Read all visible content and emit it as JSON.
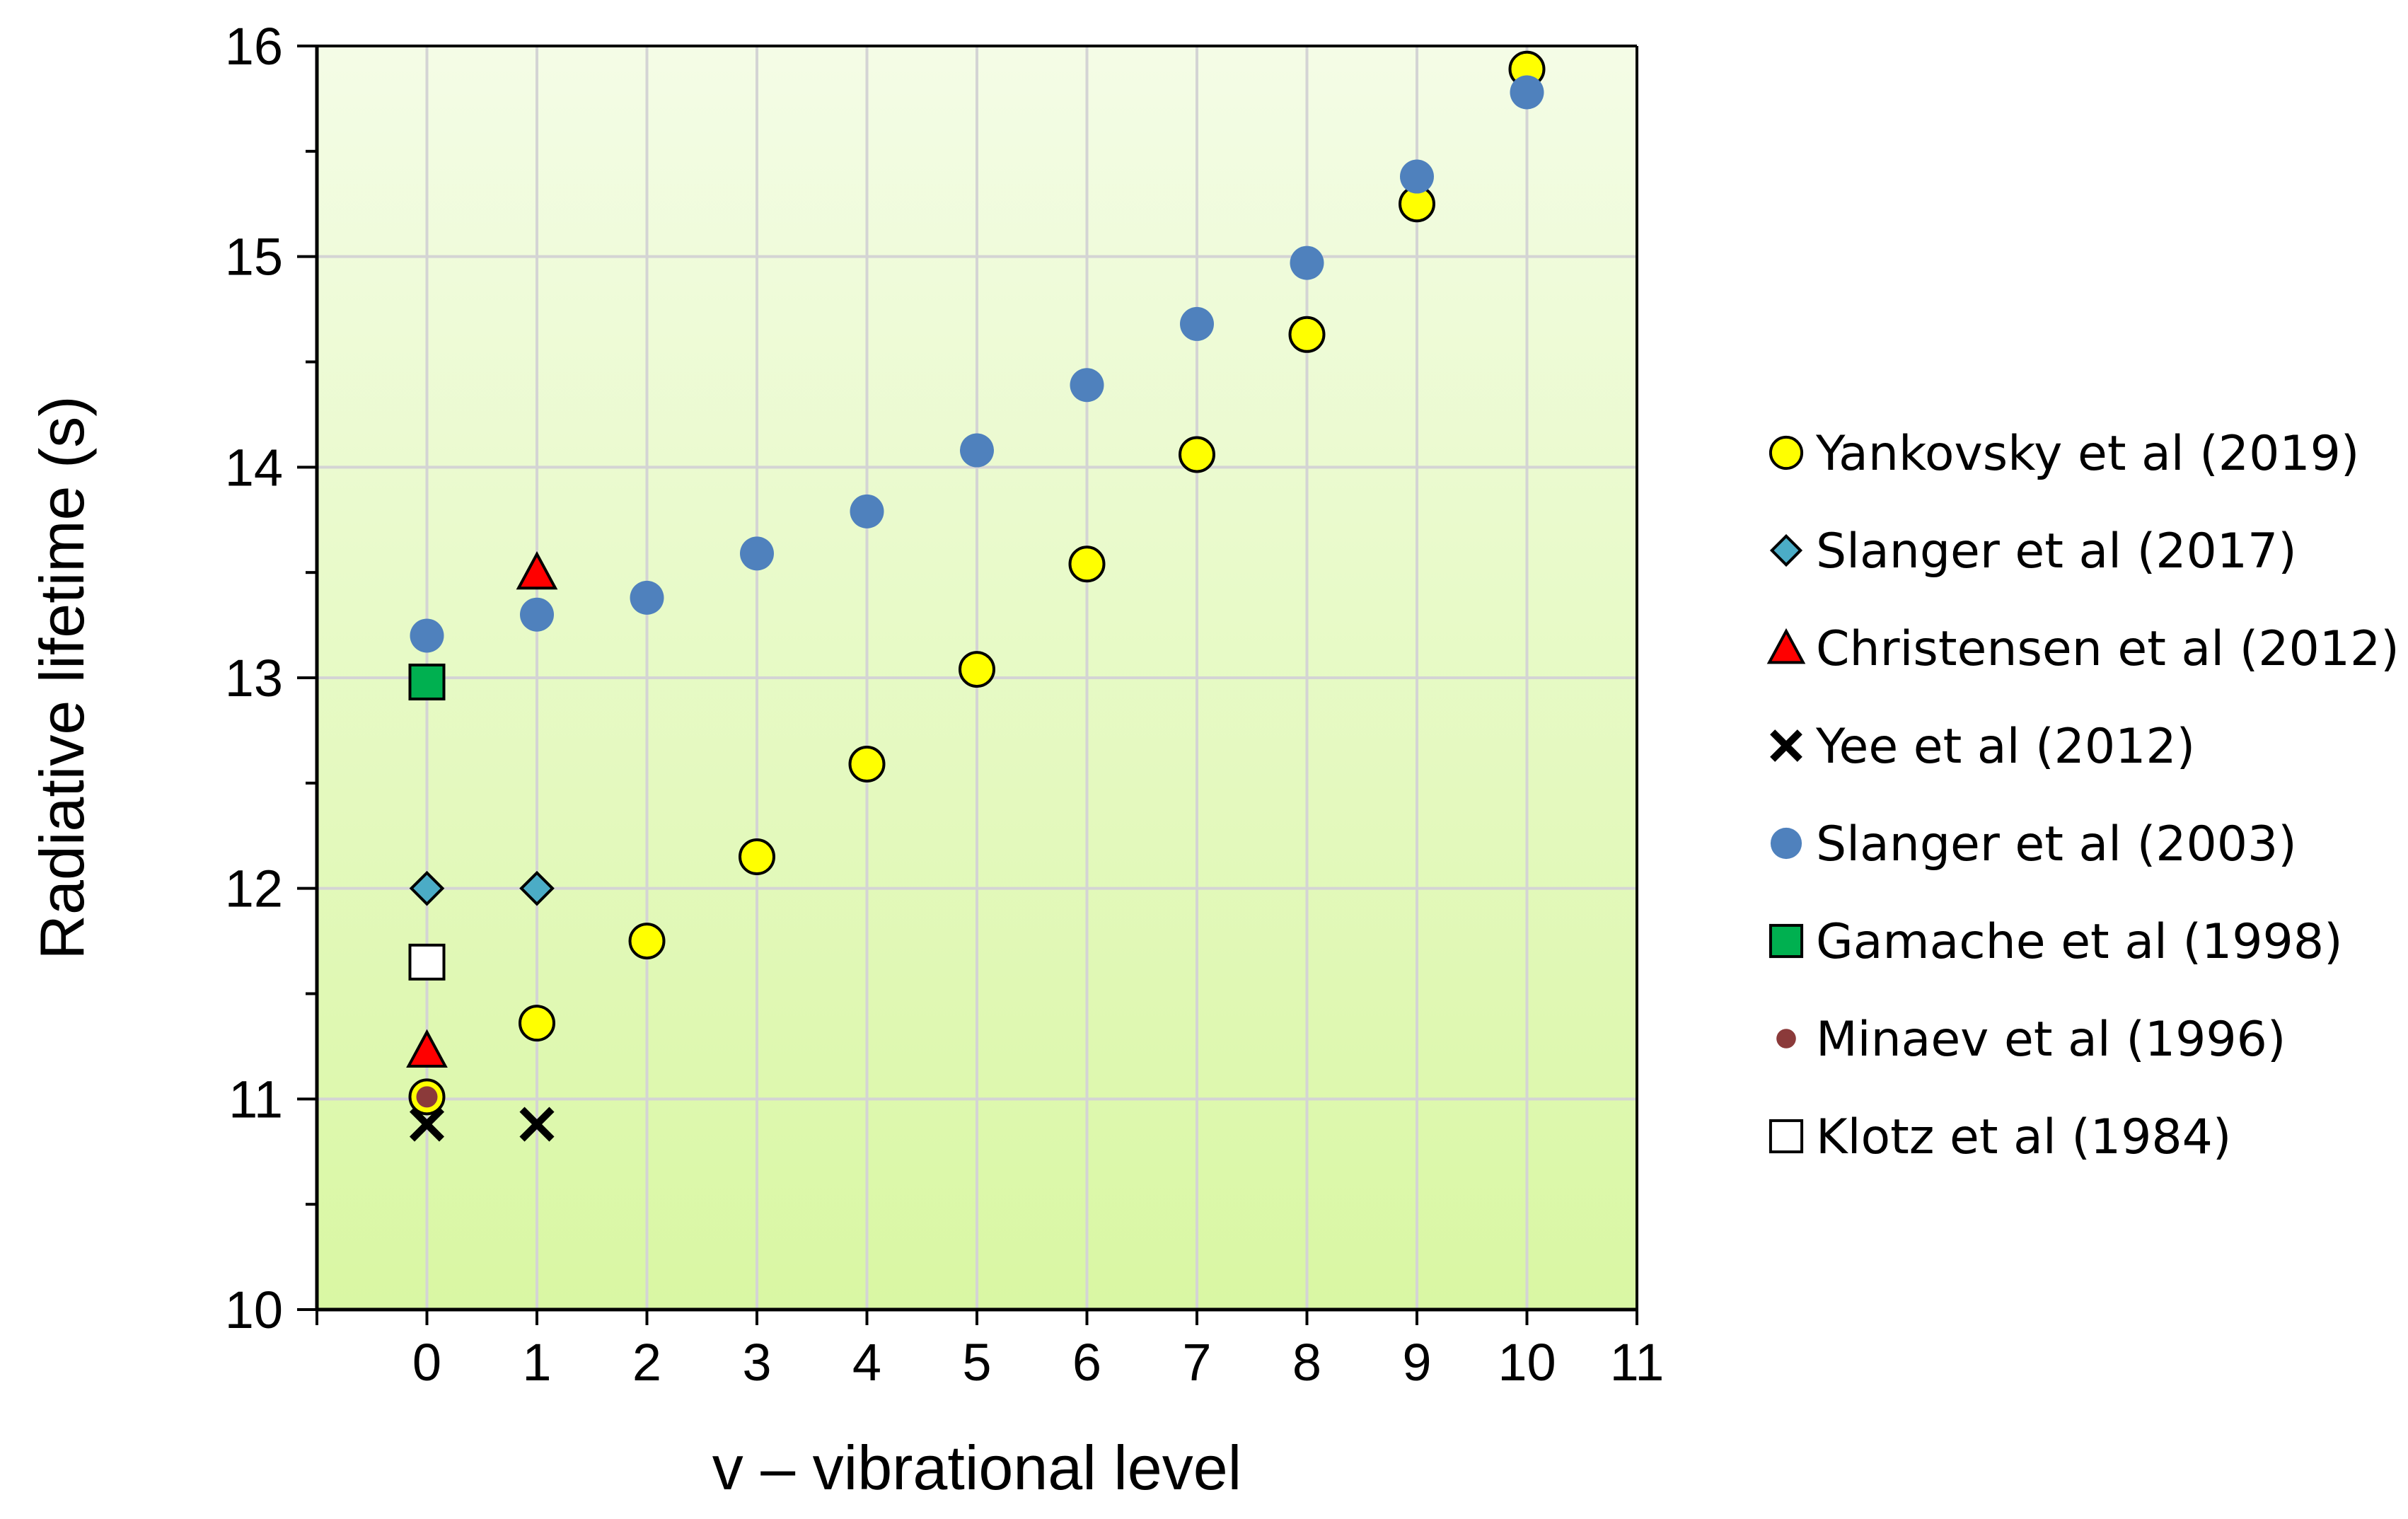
{
  "chart_data": {
    "type": "scatter",
    "title": "",
    "xlabel": "v – vibrational level",
    "ylabel": "Radiative lifetime (s)",
    "xlim": [
      -1,
      11
    ],
    "ylim": [
      10,
      16
    ],
    "xticks": [
      "0",
      "1",
      "2",
      "3",
      "4",
      "5",
      "6",
      "7",
      "8",
      "9",
      "10",
      "11"
    ],
    "yticks": [
      "10",
      "11",
      "12",
      "13",
      "14",
      "15",
      "16"
    ],
    "grid": true,
    "legend_position": "right",
    "colors": {
      "plot_bg_top": "#f4fce6",
      "plot_bg_bottom": "#d9f7a3",
      "grid": "#d4d4d4",
      "axis": "#000000"
    },
    "series": [
      {
        "name": "Yankovsky et al (2019)",
        "marker": "circle",
        "fill": "#ffff00",
        "stroke": "#000000",
        "x": [
          0,
          1,
          2,
          3,
          4,
          5,
          6,
          7,
          8,
          9,
          10
        ],
        "y": [
          11.01,
          11.36,
          11.75,
          12.15,
          12.59,
          13.04,
          13.54,
          14.06,
          14.63,
          15.25,
          15.89
        ]
      },
      {
        "name": "Slanger et al (2017)",
        "marker": "diamond",
        "fill": "#4bacc6",
        "stroke": "#000000",
        "x": [
          0,
          1
        ],
        "y": [
          12.0,
          12.0
        ]
      },
      {
        "name": "Christensen et al (2012)",
        "marker": "triangle",
        "fill": "#ff0000",
        "stroke": "#000000",
        "x": [
          0,
          1
        ],
        "y": [
          11.23,
          13.5
        ]
      },
      {
        "name": "Yee et al (2012)",
        "marker": "x",
        "fill": "#000000",
        "stroke": "#000000",
        "x": [
          0,
          1
        ],
        "y": [
          10.88,
          10.88
        ]
      },
      {
        "name": "Slanger et al (2003)",
        "marker": "circle",
        "fill": "#4f81bd",
        "stroke": "none",
        "x": [
          0,
          1,
          2,
          3,
          4,
          5,
          6,
          7,
          8,
          9,
          10
        ],
        "y": [
          13.2,
          13.3,
          13.38,
          13.59,
          13.79,
          14.08,
          14.39,
          14.68,
          14.97,
          15.38,
          15.78
        ]
      },
      {
        "name": "Gamache et al (1998)",
        "marker": "square",
        "fill": "#00b050",
        "stroke": "#000000",
        "x": [
          0
        ],
        "y": [
          12.98
        ]
      },
      {
        "name": "Minaev et al (1996)",
        "marker": "small-circle",
        "fill": "#8b3a3a",
        "stroke": "none",
        "x": [
          0
        ],
        "y": [
          11.01
        ]
      },
      {
        "name": "Klotz et al (1984)",
        "marker": "square",
        "fill": "#ffffff",
        "stroke": "#000000",
        "x": [
          0
        ],
        "y": [
          11.65
        ]
      }
    ]
  }
}
